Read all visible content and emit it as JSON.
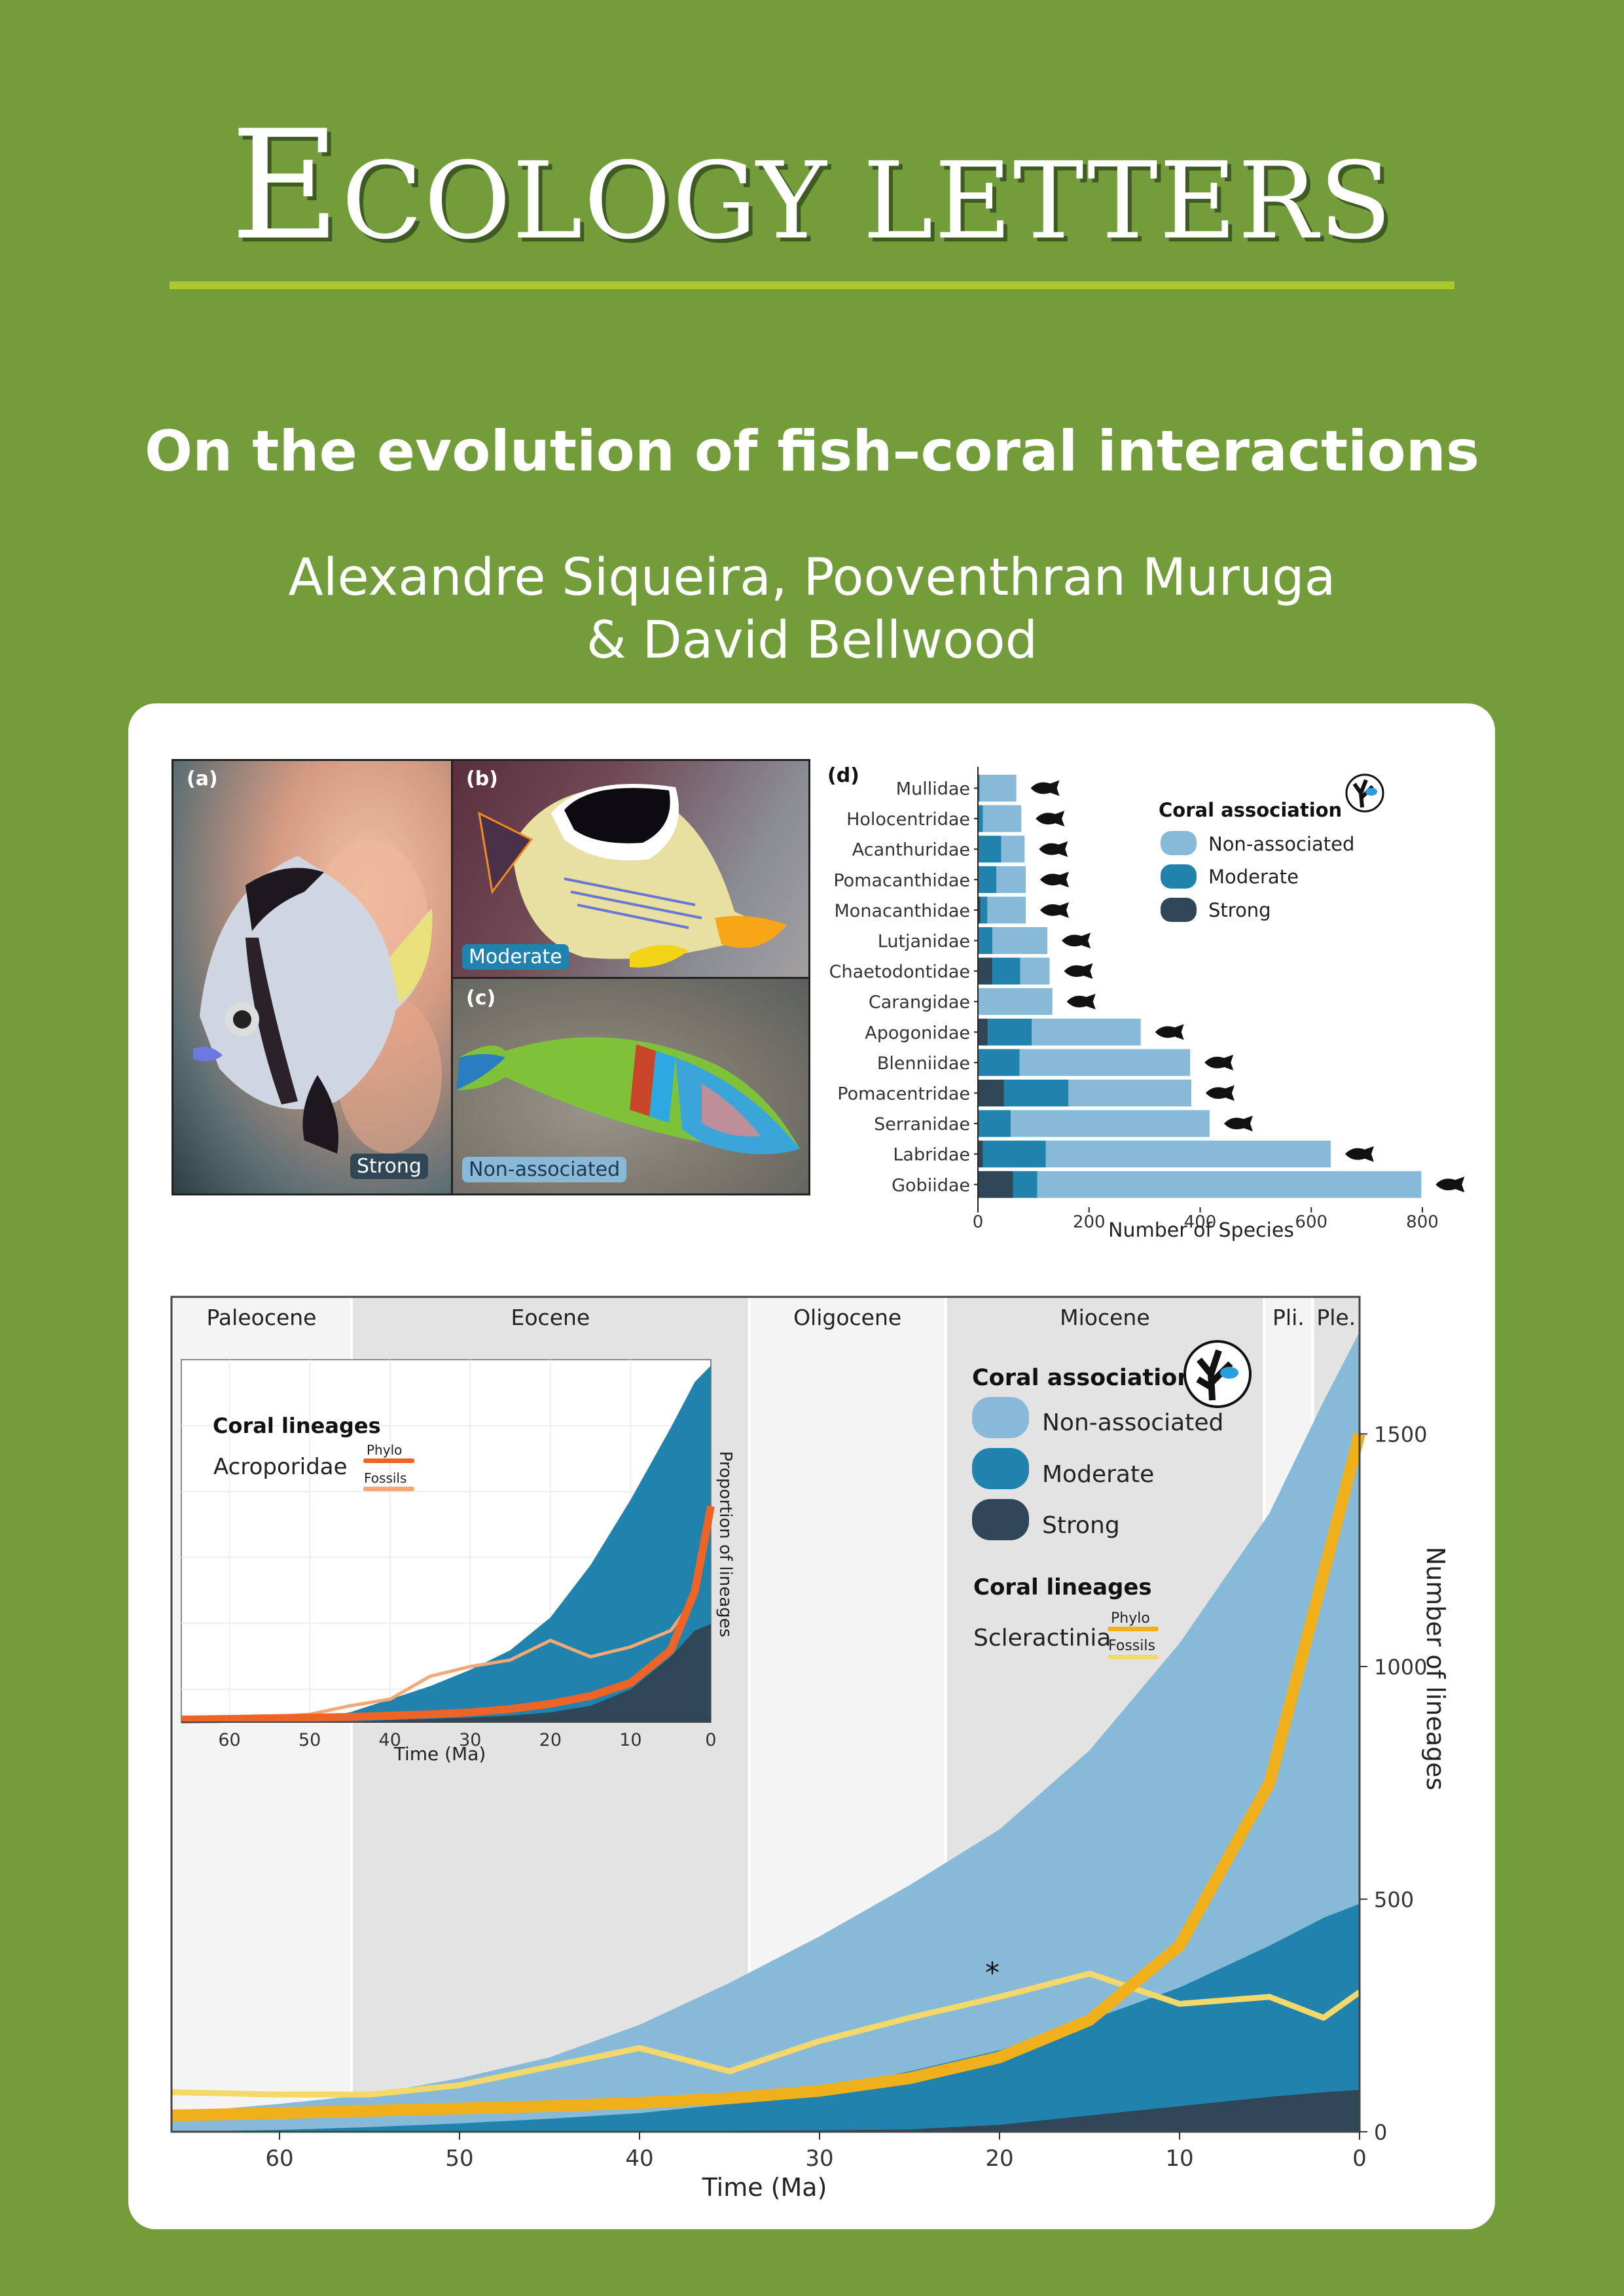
{
  "header": {
    "journal_cap": "E",
    "journal_rest": "COLOGY LETTERS",
    "article_title": "On the evolution of fish–coral interactions",
    "authors_line1": "Alexandre Siqueira, Pooventhran Muruga",
    "authors_line2": "& David Bellwood"
  },
  "colors": {
    "background": "#739d3b",
    "rule": "#a9c92e",
    "non_associated": "#87bad8",
    "moderate": "#2083ae",
    "strong": "#2f4757",
    "phylo_scleractinia": "#f0b01b",
    "fossils_scleractinia": "#f5d86a",
    "phylo_acroporidae": "#ee6326",
    "fossils_acroporidae": "#f4a875"
  },
  "photos": {
    "a": {
      "label": "(a)",
      "badge": "Strong"
    },
    "b": {
      "label": "(b)",
      "badge": "Moderate"
    },
    "c": {
      "label": "(c)",
      "badge": "Non-associated"
    }
  },
  "chart_data": [
    {
      "type": "bar",
      "panel": "(d)",
      "orientation": "horizontal-stacked",
      "title": "",
      "xlabel": "Number of Species",
      "ylabel": "",
      "xlim": [
        0,
        800
      ],
      "xticks": [
        "0",
        "200",
        "400",
        "600",
        "800"
      ],
      "legend_title": "Coral association",
      "legend": [
        "Non-associated",
        "Moderate",
        "Strong"
      ],
      "categories": [
        "Mullidae",
        "Holocentridae",
        "Acanthuridae",
        "Pomacanthidae",
        "Monacanthidae",
        "Lutjanidae",
        "Chaetodontidae",
        "Carangidae",
        "Apogonidae",
        "Blenniidae",
        "Pomacentridae",
        "Serranidae",
        "Labridae",
        "Gobiidae"
      ],
      "series": [
        {
          "name": "Strong",
          "values": [
            0,
            0,
            0,
            0,
            5,
            0,
            26,
            0,
            18,
            0,
            47,
            0,
            9,
            63
          ]
        },
        {
          "name": "Moderate",
          "values": [
            3,
            9,
            42,
            33,
            12,
            26,
            50,
            0,
            79,
            75,
            116,
            59,
            113,
            44
          ]
        },
        {
          "name": "Non-associated",
          "values": [
            66,
            69,
            42,
            53,
            69,
            99,
            53,
            134,
            196,
            307,
            221,
            358,
            513,
            691
          ]
        }
      ],
      "totals": [
        69,
        78,
        84,
        86,
        86,
        125,
        129,
        134,
        293,
        382,
        384,
        417,
        635,
        798
      ]
    },
    {
      "type": "area",
      "title": "",
      "xlabel": "Time (Ma)",
      "ylabel": "Number of lineages",
      "xlim": [
        66,
        0
      ],
      "ylim": [
        0,
        1800
      ],
      "xticks": [
        "60",
        "50",
        "40",
        "30",
        "20",
        "10",
        "0"
      ],
      "yticks": [
        "0",
        "500",
        "1000",
        "1500"
      ],
      "epochs": [
        {
          "name": "Paleocene",
          "start": 66,
          "end": 56
        },
        {
          "name": "Eocene",
          "start": 56,
          "end": 33.9
        },
        {
          "name": "Oligocene",
          "start": 33.9,
          "end": 23
        },
        {
          "name": "Miocene",
          "start": 23,
          "end": 5.3
        },
        {
          "name": "Pli.",
          "start": 5.3,
          "end": 2.6
        },
        {
          "name": "Ple.",
          "start": 2.6,
          "end": 0
        }
      ],
      "legend_title": "Coral association",
      "legend": [
        "Non-associated",
        "Moderate",
        "Strong"
      ],
      "lineage_legend_title": "Coral lineages",
      "lineage_legend_name": "Scleractinia",
      "lineage_legend_items": [
        "Phylo",
        "Fossils"
      ],
      "annotation": "*",
      "x": [
        66,
        60,
        55,
        50,
        45,
        40,
        35,
        30,
        25,
        20,
        15,
        10,
        5,
        2,
        0
      ],
      "series": [
        {
          "name": "Strong (cumulative)",
          "values": [
            0,
            0,
            0,
            0,
            0,
            1,
            2,
            3,
            5,
            15,
            35,
            55,
            75,
            85,
            90
          ]
        },
        {
          "name": "Moderate (cumulative)",
          "values": [
            0,
            4,
            10,
            18,
            28,
            40,
            60,
            90,
            130,
            175,
            240,
            310,
            400,
            460,
            490
          ]
        },
        {
          "name": "Non-associated (cumulative total)",
          "values": [
            40,
            60,
            80,
            115,
            160,
            230,
            320,
            420,
            530,
            650,
            820,
            1050,
            1330,
            1570,
            1720
          ]
        },
        {
          "name": "Scleractinia Phylo",
          "values": [
            35,
            40,
            45,
            50,
            55,
            62,
            72,
            88,
            115,
            160,
            240,
            400,
            750,
            1200,
            1500
          ]
        },
        {
          "name": "Scleractinia Fossils",
          "values": [
            85,
            80,
            80,
            100,
            140,
            180,
            130,
            195,
            245,
            290,
            340,
            275,
            290,
            245,
            300
          ]
        }
      ]
    },
    {
      "type": "area",
      "title": "inset",
      "xlabel": "Time (Ma)",
      "ylabel": "Proportion of lineages",
      "xlim": [
        66,
        0
      ],
      "xticks": [
        "60",
        "50",
        "40",
        "30",
        "20",
        "10",
        "0"
      ],
      "lineage_legend_title": "Coral lineages",
      "lineage_legend_name": "Acroporidae",
      "lineage_legend_items": [
        "Phylo",
        "Fossils"
      ]
    }
  ]
}
